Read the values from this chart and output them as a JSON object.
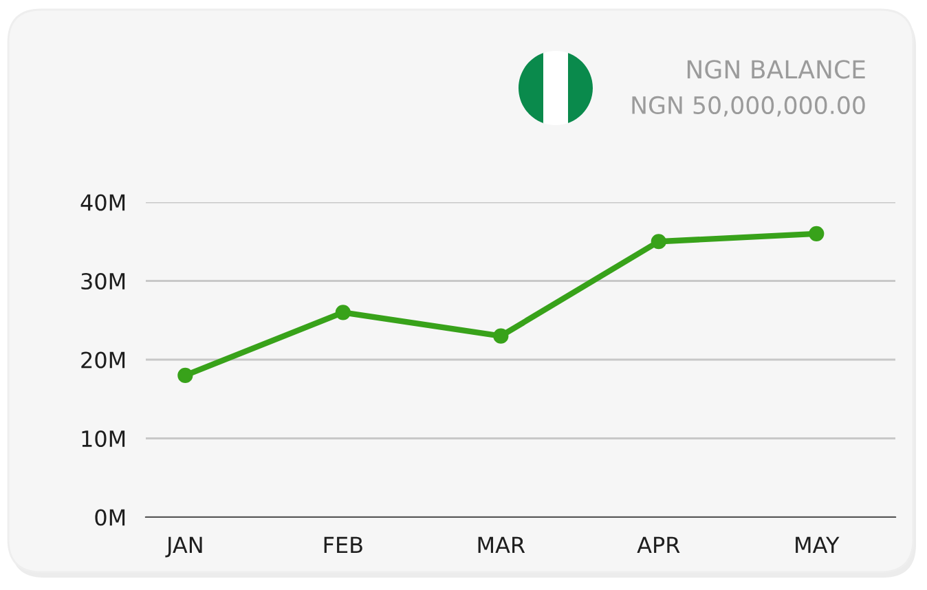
{
  "chart_data": {
    "type": "line",
    "title": "NGN BALANCE",
    "subtitle": "NGN 50,000,000.00",
    "categories": [
      "JAN",
      "FEB",
      "MAR",
      "APR",
      "MAY"
    ],
    "series": [
      {
        "color": "#38a21a",
        "values": [
          18,
          26,
          23,
          35,
          36
        ]
      }
    ],
    "ylim": [
      0,
      40
    ],
    "yticks": [
      {
        "value": 0,
        "label": "0M"
      },
      {
        "value": 10,
        "label": "10M"
      },
      {
        "value": 20,
        "label": "20M"
      },
      {
        "value": 30,
        "label": "30M"
      },
      {
        "value": 40,
        "label": "40M"
      }
    ],
    "grid": "y",
    "marker": "circle",
    "line_style": "solid"
  }
}
